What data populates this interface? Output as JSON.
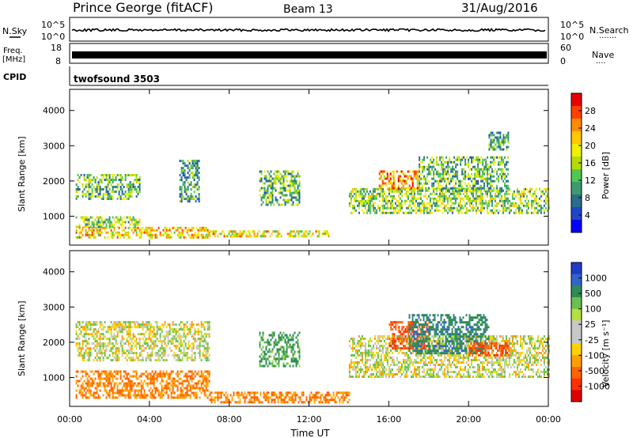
{
  "header": {
    "station": "Prince George (fitACF)",
    "beam": "Beam 13",
    "date": "31/Aug/2016"
  },
  "noise_panel": {
    "left_label": "N.Sky",
    "right_label": "N.Search",
    "ticks": [
      "10^5",
      "10^0"
    ],
    "dotted": "......."
  },
  "freq_panel": {
    "left_label_1": "Freq.",
    "left_label_2": "[MHz]",
    "left_ticks": [
      "18",
      "8"
    ],
    "right_label": "Nave",
    "right_ticks": [
      "60",
      "0"
    ],
    "dotted": "...."
  },
  "cpid_panel": {
    "label": "CPID",
    "value": "twofsound 3503"
  },
  "power_panel": {
    "ylabel": "Slant Range [km]",
    "yticks": [
      "4000",
      "3000",
      "2000",
      "1000"
    ],
    "cbar_label": "Power [dB]",
    "cbar_ticks": [
      "28",
      "24",
      "20",
      "16",
      "12",
      "8",
      "4"
    ],
    "cbar_colors": [
      "#e60000",
      "#ff4000",
      "#ff8c00",
      "#ffc800",
      "#f0f000",
      "#b4dc00",
      "#50c850",
      "#3c9a6e",
      "#2a6e8c",
      "#1f46c8",
      "#0000ff"
    ]
  },
  "velocity_panel": {
    "ylabel": "Slant Range [km]",
    "yticks": [
      "4000",
      "3000",
      "2000",
      "1000"
    ],
    "cbar_label": "Velocity [m s⁻¹]",
    "cbar_ticks": [
      "1000",
      "500",
      "100",
      "25",
      "-25",
      "-100",
      "-500",
      "-1000"
    ],
    "cbar_colors": [
      "#1e3cc8",
      "#3264c8",
      "#2e8b57",
      "#6ac050",
      "#b4e040",
      "#c8c8c8",
      "#c8c8c8",
      "#ffd200",
      "#ffa000",
      "#ff6400",
      "#ff3000",
      "#e00000"
    ]
  },
  "xaxis": {
    "ticks": [
      "00:00",
      "04:00",
      "08:00",
      "12:00",
      "16:00",
      "20:00",
      "00:00"
    ],
    "label": "Time UT"
  },
  "chart_data": [
    {
      "type": "heatmap",
      "title": "Prince George (fitACF) Beam 13 31/Aug/2016",
      "xlabel": "Time UT",
      "ylabel": "Slant Range [km]",
      "xlim_hours": [
        0,
        24
      ],
      "ylim_km": [
        180,
        4600
      ],
      "colorbar": {
        "label": "Power [dB]",
        "range": [
          0,
          30
        ]
      },
      "bands": [
        {
          "t": [
            0.3,
            7.0
          ],
          "range_km": [
            400,
            700
          ],
          "value": 20
        },
        {
          "t": [
            0.3,
            3.5
          ],
          "range_km": [
            700,
            1000
          ],
          "value": 14
        },
        {
          "t": [
            0.3,
            3.5
          ],
          "range_km": [
            1500,
            2200
          ],
          "value": 12
        },
        {
          "t": [
            5.5,
            6.5
          ],
          "range_km": [
            1400,
            2600
          ],
          "value": 10
        },
        {
          "t": [
            7.0,
            13.0
          ],
          "range_km": [
            400,
            600
          ],
          "value": 18
        },
        {
          "t": [
            9.5,
            11.5
          ],
          "range_km": [
            1300,
            2300
          ],
          "value": 12
        },
        {
          "t": [
            14.0,
            24.0
          ],
          "range_km": [
            1100,
            1800
          ],
          "value": 14
        },
        {
          "t": [
            15.5,
            17.5
          ],
          "range_km": [
            1800,
            2300
          ],
          "value": 22
        },
        {
          "t": [
            17.5,
            22.0
          ],
          "range_km": [
            1700,
            2700
          ],
          "value": 12
        },
        {
          "t": [
            21.0,
            22.0
          ],
          "range_km": [
            2900,
            3400
          ],
          "value": 10
        }
      ]
    },
    {
      "type": "heatmap",
      "title": "",
      "xlabel": "Time UT",
      "ylabel": "Slant Range [km]",
      "xlim_hours": [
        0,
        24
      ],
      "ylim_km": [
        180,
        4600
      ],
      "colorbar": {
        "label": "Velocity [m s⁻¹]",
        "range": [
          -1000,
          1000
        ]
      },
      "bands": [
        {
          "t": [
            0.3,
            7.0
          ],
          "range_km": [
            400,
            1200
          ],
          "value": -150
        },
        {
          "t": [
            0.3,
            7.0
          ],
          "range_km": [
            1500,
            2600
          ],
          "value": 0
        },
        {
          "t": [
            7.0,
            14.0
          ],
          "range_km": [
            300,
            600
          ],
          "value": -150
        },
        {
          "t": [
            9.5,
            11.5
          ],
          "range_km": [
            1300,
            2300
          ],
          "value": 120
        },
        {
          "t": [
            14.0,
            24.0
          ],
          "range_km": [
            1000,
            2200
          ],
          "value": 0
        },
        {
          "t": [
            16.0,
            18.0
          ],
          "range_km": [
            1800,
            2600
          ],
          "value": -300
        },
        {
          "t": [
            17.0,
            21.0
          ],
          "range_km": [
            1700,
            2800
          ],
          "value": 200
        },
        {
          "t": [
            20.0,
            22.0
          ],
          "range_km": [
            1600,
            2000
          ],
          "value": -300
        }
      ]
    }
  ]
}
